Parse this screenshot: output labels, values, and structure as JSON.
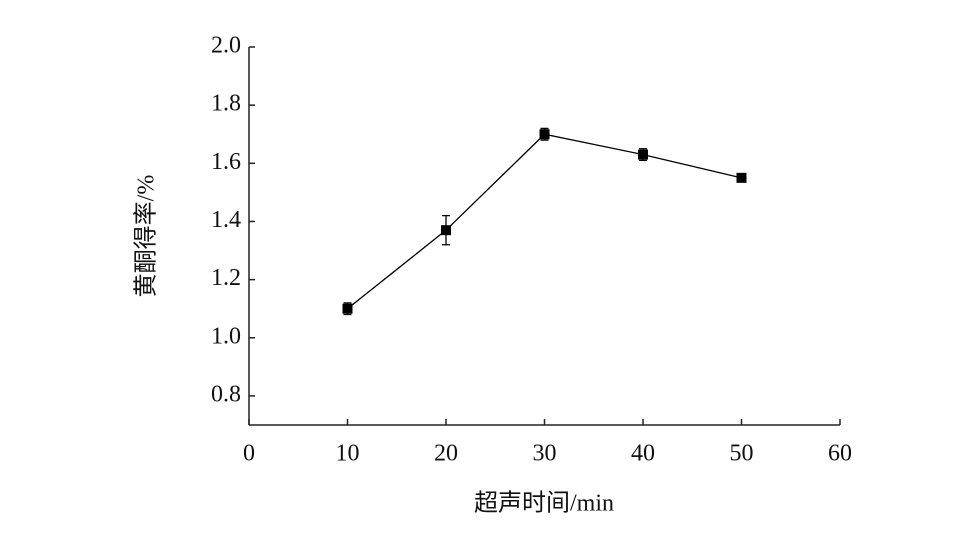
{
  "chart_data": {
    "type": "line",
    "x_label": "超声时间/min",
    "y_label": "黄酮得率/%",
    "x": [
      10,
      20,
      30,
      40,
      50
    ],
    "values": [
      1.1,
      1.37,
      1.7,
      1.63,
      1.55
    ],
    "errors": [
      0.02,
      0.05,
      0.02,
      0.02,
      0.01
    ],
    "color": "#000000",
    "xlim": [
      0,
      60
    ],
    "xticks": [
      0,
      10,
      20,
      30,
      40,
      50,
      60
    ],
    "ylim": [
      0.7,
      2.0
    ],
    "yticks": [
      0.8,
      {
        "value": 1,
        "label": "1.0"
      },
      1.2,
      1.4,
      1.6,
      1.8,
      {
        "value": 2,
        "label": "2.0"
      }
    ],
    "grid": false
  }
}
